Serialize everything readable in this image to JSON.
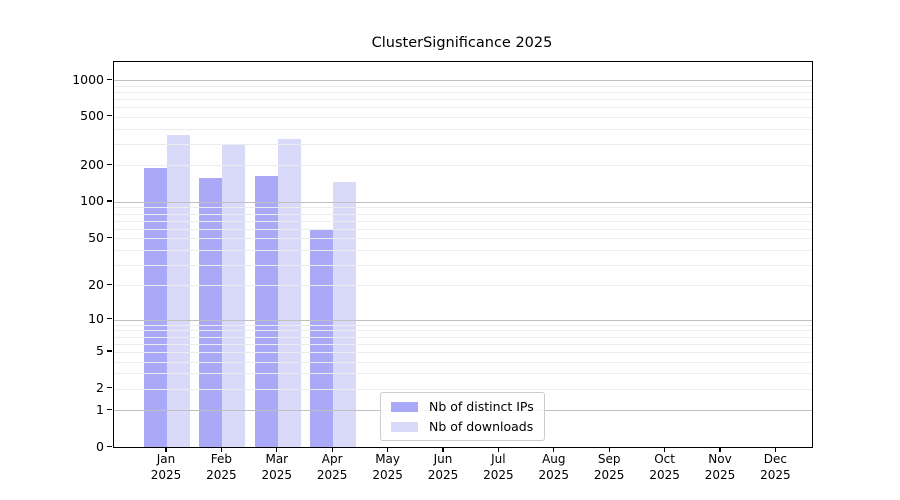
{
  "title": "ClusterSignificance 2025",
  "chart_data": {
    "type": "bar",
    "title": "ClusterSignificance 2025",
    "x_categories": [
      "Jan",
      "Feb",
      "Mar",
      "Apr",
      "May",
      "Jun",
      "Jul",
      "Aug",
      "Sep",
      "Oct",
      "Nov",
      "Dec"
    ],
    "x_year": "2025",
    "y_ticks": [
      0,
      1,
      2,
      5,
      10,
      20,
      50,
      100,
      200,
      500,
      1000
    ],
    "y_scale": "log1p",
    "y_range": [
      0,
      1400
    ],
    "grid": "on",
    "legend_position": "lower center (inside plot)",
    "series": [
      {
        "name": "Nb of distinct IPs",
        "color": "#a9a9f7",
        "values": [
          190,
          157,
          163,
          59,
          0,
          0,
          0,
          0,
          0,
          0,
          0,
          0
        ]
      },
      {
        "name": "Nb of downloads",
        "color": "#d9d9fa",
        "values": [
          353,
          294,
          329,
          146,
          0,
          0,
          0,
          0,
          0,
          0,
          0,
          0
        ]
      }
    ],
    "colors": {
      "major_grid": "#c0c0c0",
      "minor_grid": "#ececec",
      "axis": "#000000",
      "background": "#ffffff"
    }
  }
}
